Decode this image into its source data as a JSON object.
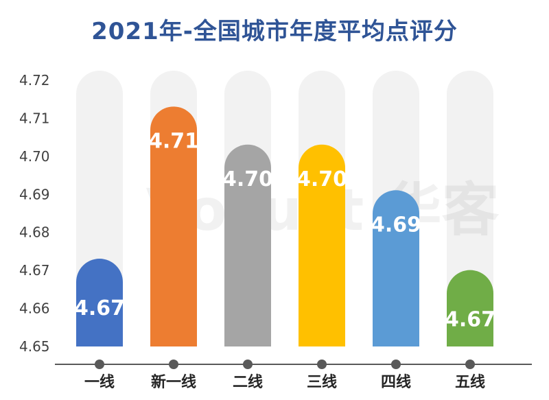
{
  "chart_data": {
    "type": "bar",
    "title": "2021年-全国城市年度平均点评分",
    "categories": [
      "一线",
      "新一线",
      "二线",
      "三线",
      "四线",
      "五线"
    ],
    "values": [
      4.672,
      4.712,
      4.702,
      4.702,
      4.69,
      4.669
    ],
    "value_labels": [
      "4.67",
      "4.71",
      "4.70",
      "4.70",
      "4.69",
      "4.67"
    ],
    "ylim": [
      4.65,
      4.72
    ],
    "yticks": [
      "4.72",
      "4.71",
      "4.70",
      "4.69",
      "4.68",
      "4.67",
      "4.66",
      "4.65"
    ],
    "colors": [
      "#4472c4",
      "#ed7d31",
      "#a5a5a5",
      "#ffc000",
      "#5b9bd5",
      "#70ad47"
    ],
    "background_bar_color": "#f2f2f2",
    "axis_color": "#595959",
    "grid": false,
    "legend": "none",
    "watermark": "Vocust 华客"
  }
}
